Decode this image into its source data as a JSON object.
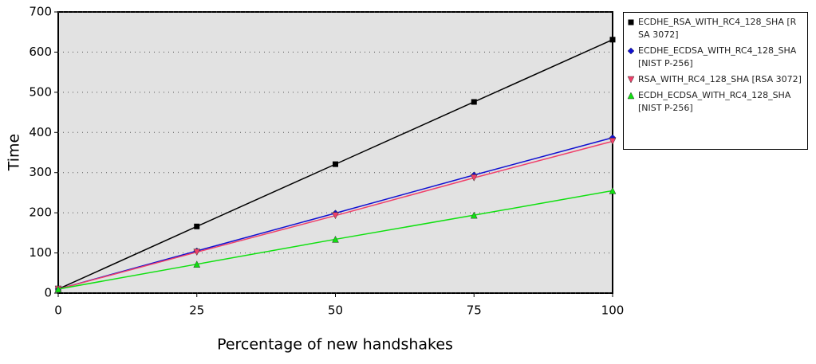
{
  "chart_data": {
    "type": "line",
    "x_label": "Percentage of new handshakes",
    "y_label": "Time",
    "x": [
      0,
      25,
      50,
      75,
      100
    ],
    "series": [
      {
        "name": "ECDHE_RSA_WITH_RC4_128_SHA [RSA 3072]",
        "color": "#000000",
        "marker": "square",
        "values": [
          10,
          166,
          321,
          476,
          631
        ]
      },
      {
        "name": "ECDHE_ECDSA_WITH_RC4_128_SHA [NIST P-256]",
        "color": "#1010d0",
        "marker": "diamond",
        "values": [
          10,
          105,
          199,
          294,
          387
        ]
      },
      {
        "name": "RSA_WITH_RC4_128_SHA [RSA 3072]",
        "color": "#f0406a",
        "marker": "triangle-down",
        "values": [
          10,
          102,
          193,
          287,
          378
        ]
      },
      {
        "name": "ECDH_ECDSA_WITH_RC4_128_SHA [NIST P-256]",
        "color": "#10e010",
        "marker": "triangle-up",
        "values": [
          10,
          72,
          134,
          194,
          255
        ]
      }
    ],
    "xlim": [
      0,
      100
    ],
    "xticks": [
      0,
      25,
      50,
      75,
      100
    ],
    "ylim": [
      0,
      700
    ],
    "yticks": [
      0,
      100,
      200,
      300,
      400,
      500,
      600,
      700
    ],
    "grid": true,
    "legend": "right"
  }
}
